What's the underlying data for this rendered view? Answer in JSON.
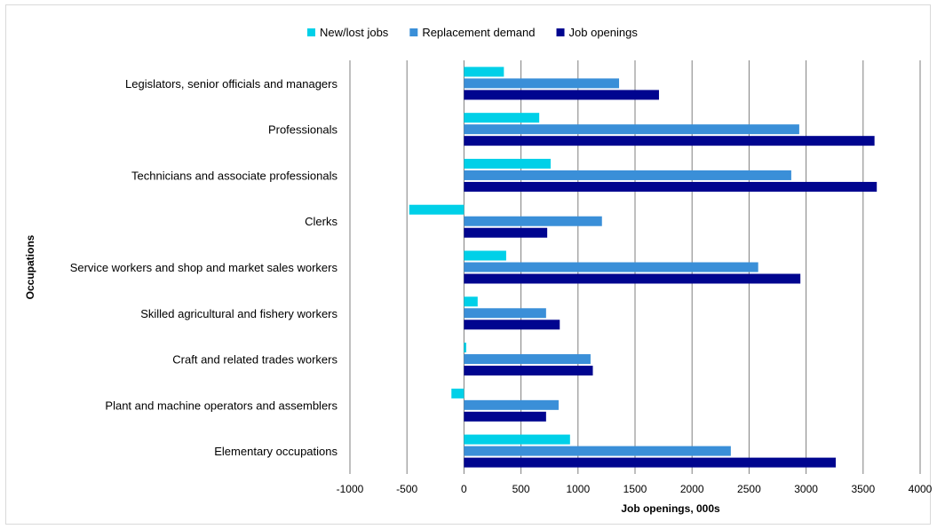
{
  "chart_data": {
    "type": "bar",
    "orientation": "horizontal",
    "title": "",
    "xlabel": "Job openings, 000s",
    "ylabel": "Occupations",
    "xlim": [
      -1000,
      4000
    ],
    "xticks": [
      -1000,
      -500,
      0,
      500,
      1000,
      1500,
      2000,
      2500,
      3000,
      3500,
      4000
    ],
    "grid": "vertical",
    "legend_position": "top",
    "categories": [
      "Legislators, senior officials and managers",
      "Professionals",
      "Technicians and associate professionals",
      "Clerks",
      "Service workers and shop and market sales workers",
      "Skilled agricultural and fishery workers",
      "Craft and related trades workers",
      "Plant and machine operators and assemblers",
      "Elementary occupations"
    ],
    "series": [
      {
        "name": "New/lost jobs",
        "color": "#00d0e8",
        "values": [
          350,
          660,
          760,
          -480,
          370,
          120,
          20,
          -110,
          930
        ]
      },
      {
        "name": "Replacement demand",
        "color": "#3a8fd8",
        "values": [
          1360,
          2940,
          2870,
          1210,
          2580,
          720,
          1110,
          830,
          2340
        ]
      },
      {
        "name": "Job openings",
        "color": "#00058f",
        "values": [
          1710,
          3600,
          3620,
          730,
          2950,
          840,
          1130,
          720,
          3260
        ]
      }
    ]
  }
}
